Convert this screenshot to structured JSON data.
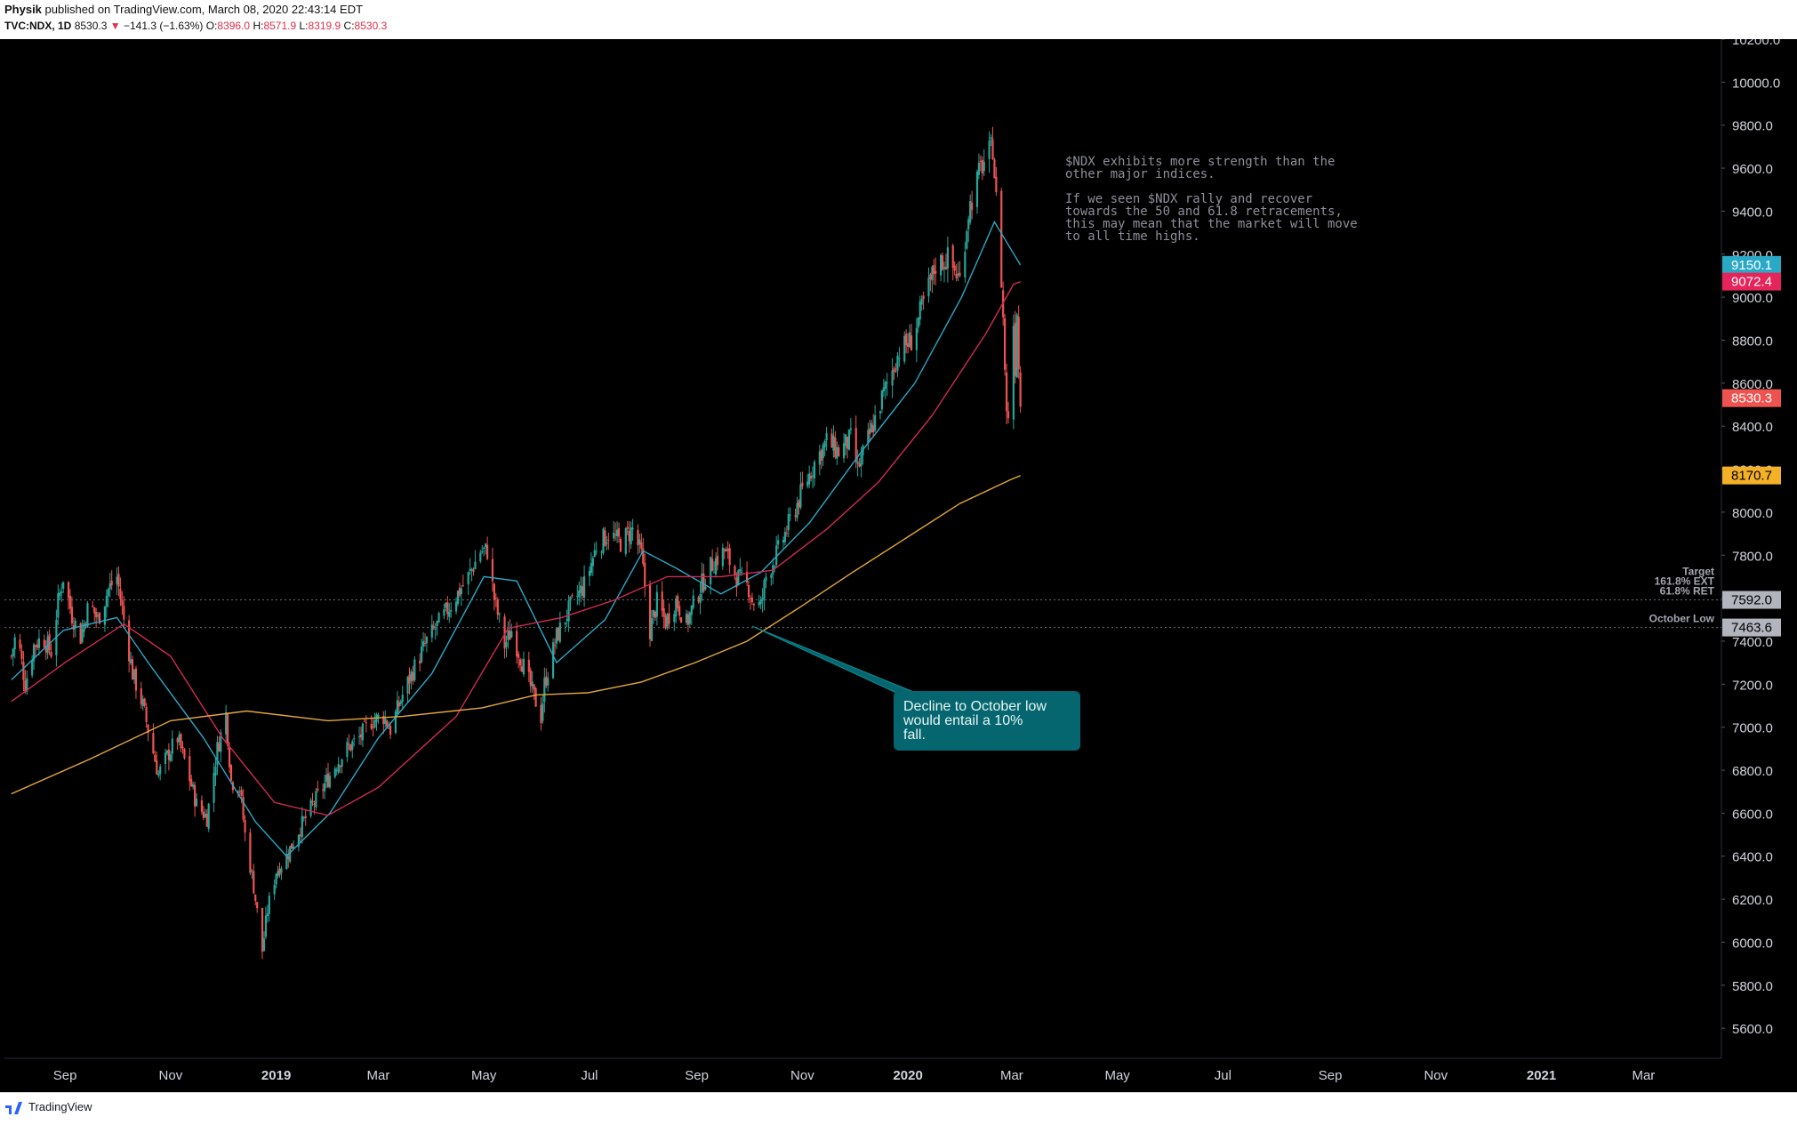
{
  "header": {
    "author": "Physik",
    "published": "published on TradingView.com, March 08, 2020 22:43:14 EDT",
    "symbol": "TVC:NDX, 1D",
    "last": "8530.3",
    "change": "−141.3 (−1.63%)",
    "o_label": "O:",
    "o": "8396.0",
    "h_label": "H:",
    "h": "8571.9",
    "l_label": "L:",
    "l": "8319.9",
    "c_label": "C:",
    "c": "8530.3"
  },
  "footer": {
    "brand": "TradingView"
  },
  "colors": {
    "background": "#000000",
    "up": "#26a69a",
    "down": "#ef5350",
    "ma_fast": "#2aa9c6",
    "ma_mid": "#d12a54",
    "ma_slow": "#e5a93b",
    "callout": "#05666f",
    "axis_text": "#d1d4dc"
  },
  "chart_data": {
    "type": "candlestick",
    "symbol": "TVC:NDX",
    "interval": "1D",
    "ylim": [
      5460,
      10200
    ],
    "x_range": [
      "2018-07-28",
      "2021-04-15"
    ],
    "y_ticks": [
      "5600.0",
      "5800.0",
      "6000.0",
      "6200.0",
      "6400.0",
      "6600.0",
      "6800.0",
      "7000.0",
      "7200.0",
      "7400.0",
      "7600.0",
      "7800.0",
      "8000.0",
      "8200.0",
      "8400.0",
      "8600.0",
      "8800.0",
      "9000.0",
      "9200.0",
      "9400.0",
      "9600.0",
      "9800.0",
      "10000.0",
      "10200.0"
    ],
    "x_ticks": [
      {
        "date": "2018-09-01",
        "label": "Sep",
        "bold": false
      },
      {
        "date": "2018-11-01",
        "label": "Nov",
        "bold": false
      },
      {
        "date": "2019-01-01",
        "label": "2019",
        "bold": true
      },
      {
        "date": "2019-03-01",
        "label": "Mar",
        "bold": false
      },
      {
        "date": "2019-05-01",
        "label": "May",
        "bold": false
      },
      {
        "date": "2019-07-01",
        "label": "Jul",
        "bold": false
      },
      {
        "date": "2019-09-01",
        "label": "Sep",
        "bold": false
      },
      {
        "date": "2019-11-01",
        "label": "Nov",
        "bold": false
      },
      {
        "date": "2020-01-01",
        "label": "2020",
        "bold": true
      },
      {
        "date": "2020-03-01",
        "label": "Mar",
        "bold": false
      },
      {
        "date": "2020-05-01",
        "label": "May",
        "bold": false
      },
      {
        "date": "2020-07-01",
        "label": "Jul",
        "bold": false
      },
      {
        "date": "2020-09-01",
        "label": "Sep",
        "bold": false
      },
      {
        "date": "2020-11-01",
        "label": "Nov",
        "bold": false
      },
      {
        "date": "2021-01-01",
        "label": "2021",
        "bold": true
      },
      {
        "date": "2021-03-01",
        "label": "Mar",
        "bold": false
      }
    ],
    "close_path": [
      [
        "2018-08-01",
        7330
      ],
      [
        "2018-08-04",
        7450
      ],
      [
        "2018-08-09",
        7200
      ],
      [
        "2018-08-14",
        7380
      ],
      [
        "2018-08-19",
        7420
      ],
      [
        "2018-08-24",
        7350
      ],
      [
        "2018-08-28",
        7580
      ],
      [
        "2018-08-31",
        7700
      ],
      [
        "2018-09-05",
        7520
      ],
      [
        "2018-09-10",
        7420
      ],
      [
        "2018-09-15",
        7580
      ],
      [
        "2018-09-20",
        7500
      ],
      [
        "2018-09-26",
        7640
      ],
      [
        "2018-10-01",
        7700
      ],
      [
        "2018-10-05",
        7500
      ],
      [
        "2018-10-10",
        7250
      ],
      [
        "2018-10-16",
        7100
      ],
      [
        "2018-10-20",
        6950
      ],
      [
        "2018-10-25",
        6780
      ],
      [
        "2018-10-31",
        6880
      ],
      [
        "2018-11-05",
        6950
      ],
      [
        "2018-11-10",
        6820
      ],
      [
        "2018-11-16",
        6640
      ],
      [
        "2018-11-22",
        6580
      ],
      [
        "2018-11-28",
        6900
      ],
      [
        "2018-12-03",
        7060
      ],
      [
        "2018-12-06",
        6750
      ],
      [
        "2018-12-11",
        6720
      ],
      [
        "2018-12-14",
        6500
      ],
      [
        "2018-12-19",
        6260
      ],
      [
        "2018-12-24",
        5960
      ],
      [
        "2018-12-27",
        6150
      ],
      [
        "2019-01-01",
        6330
      ],
      [
        "2019-01-07",
        6400
      ],
      [
        "2019-01-14",
        6520
      ],
      [
        "2019-01-21",
        6620
      ],
      [
        "2019-01-28",
        6720
      ],
      [
        "2019-02-04",
        6820
      ],
      [
        "2019-02-11",
        6900
      ],
      [
        "2019-02-18",
        6950
      ],
      [
        "2019-02-25",
        7030
      ],
      [
        "2019-03-04",
        7050
      ],
      [
        "2019-03-08",
        6990
      ],
      [
        "2019-03-15",
        7150
      ],
      [
        "2019-03-22",
        7280
      ],
      [
        "2019-03-29",
        7400
      ],
      [
        "2019-04-08",
        7520
      ],
      [
        "2019-04-15",
        7610
      ],
      [
        "2019-04-22",
        7700
      ],
      [
        "2019-04-29",
        7820
      ],
      [
        "2019-05-03",
        7820
      ],
      [
        "2019-05-07",
        7600
      ],
      [
        "2019-05-13",
        7380
      ],
      [
        "2019-05-17",
        7450
      ],
      [
        "2019-05-24",
        7280
      ],
      [
        "2019-06-03",
        7050
      ],
      [
        "2019-06-05",
        7200
      ],
      [
        "2019-06-12",
        7420
      ],
      [
        "2019-06-20",
        7560
      ],
      [
        "2019-06-28",
        7660
      ],
      [
        "2019-07-05",
        7840
      ],
      [
        "2019-07-12",
        7900
      ],
      [
        "2019-07-19",
        7860
      ],
      [
        "2019-07-26",
        7920
      ],
      [
        "2019-07-31",
        7800
      ],
      [
        "2019-08-05",
        7450
      ],
      [
        "2019-08-09",
        7580
      ],
      [
        "2019-08-14",
        7490
      ],
      [
        "2019-08-20",
        7590
      ],
      [
        "2019-08-26",
        7480
      ],
      [
        "2019-09-03",
        7650
      ],
      [
        "2019-09-10",
        7760
      ],
      [
        "2019-09-17",
        7820
      ],
      [
        "2019-09-24",
        7700
      ],
      [
        "2019-10-01",
        7650
      ],
      [
        "2019-10-03",
        7590
      ],
      [
        "2019-10-08",
        7560
      ],
      [
        "2019-10-11",
        7700
      ],
      [
        "2019-10-18",
        7820
      ],
      [
        "2019-10-25",
        7960
      ],
      [
        "2019-11-01",
        8100
      ],
      [
        "2019-11-08",
        8230
      ],
      [
        "2019-11-15",
        8330
      ],
      [
        "2019-11-22",
        8280
      ],
      [
        "2019-11-29",
        8340
      ],
      [
        "2019-12-03",
        8200
      ],
      [
        "2019-12-10",
        8360
      ],
      [
        "2019-12-17",
        8530
      ],
      [
        "2019-12-27",
        8750
      ],
      [
        "2020-01-03",
        8800
      ],
      [
        "2020-01-10",
        8970
      ],
      [
        "2020-01-17",
        9150
      ],
      [
        "2020-01-24",
        9180
      ],
      [
        "2020-01-31",
        9080
      ],
      [
        "2020-02-05",
        9400
      ],
      [
        "2020-02-12",
        9600
      ],
      [
        "2020-02-19",
        9700
      ],
      [
        "2020-02-21",
        9450
      ],
      [
        "2020-02-24",
        9080
      ],
      [
        "2020-02-25",
        8900
      ],
      [
        "2020-02-27",
        8450
      ],
      [
        "2020-02-28",
        8460
      ],
      [
        "2020-03-02",
        8880
      ],
      [
        "2020-03-03",
        8680
      ],
      [
        "2020-03-04",
        8950
      ],
      [
        "2020-03-05",
        8670
      ],
      [
        "2020-03-06",
        8530
      ]
    ],
    "moving_averages": [
      {
        "color": "#2aa9c6",
        "last_value": "9150.1",
        "points": [
          [
            "2018-08-01",
            7220
          ],
          [
            "2018-08-31",
            7450
          ],
          [
            "2018-10-01",
            7510
          ],
          [
            "2018-10-20",
            7290
          ],
          [
            "2018-11-20",
            6950
          ],
          [
            "2018-12-20",
            6560
          ],
          [
            "2019-01-07",
            6400
          ],
          [
            "2019-02-01",
            6600
          ],
          [
            "2019-03-01",
            6950
          ],
          [
            "2019-04-01",
            7250
          ],
          [
            "2019-05-01",
            7700
          ],
          [
            "2019-05-20",
            7680
          ],
          [
            "2019-06-12",
            7300
          ],
          [
            "2019-07-10",
            7500
          ],
          [
            "2019-08-01",
            7820
          ],
          [
            "2019-08-20",
            7740
          ],
          [
            "2019-09-15",
            7620
          ],
          [
            "2019-10-08",
            7720
          ],
          [
            "2019-11-05",
            7950
          ],
          [
            "2019-12-05",
            8280
          ],
          [
            "2020-01-05",
            8600
          ],
          [
            "2020-02-01",
            9000
          ],
          [
            "2020-02-20",
            9350
          ],
          [
            "2020-03-06",
            9150
          ]
        ]
      },
      {
        "color": "#d12a54",
        "last_value": "9072.4",
        "points": [
          [
            "2018-08-01",
            7120
          ],
          [
            "2018-09-01",
            7300
          ],
          [
            "2018-10-05",
            7480
          ],
          [
            "2018-11-01",
            7330
          ],
          [
            "2018-12-01",
            6950
          ],
          [
            "2018-12-31",
            6650
          ],
          [
            "2019-01-31",
            6590
          ],
          [
            "2019-03-01",
            6720
          ],
          [
            "2019-04-15",
            7050
          ],
          [
            "2019-05-15",
            7460
          ],
          [
            "2019-06-15",
            7510
          ],
          [
            "2019-07-15",
            7590
          ],
          [
            "2019-08-15",
            7700
          ],
          [
            "2019-09-15",
            7700
          ],
          [
            "2019-10-15",
            7730
          ],
          [
            "2019-11-15",
            7920
          ],
          [
            "2019-12-15",
            8140
          ],
          [
            "2020-01-15",
            8450
          ],
          [
            "2020-02-15",
            8830
          ],
          [
            "2020-03-02",
            9060
          ],
          [
            "2020-03-06",
            9072
          ]
        ]
      },
      {
        "color": "#e5a93b",
        "last_value": "8170.7",
        "points": [
          [
            "2018-08-01",
            6690
          ],
          [
            "2018-09-15",
            6850
          ],
          [
            "2018-11-01",
            7030
          ],
          [
            "2018-12-15",
            7075
          ],
          [
            "2019-01-31",
            7030
          ],
          [
            "2019-03-15",
            7050
          ],
          [
            "2019-04-30",
            7090
          ],
          [
            "2019-05-31",
            7150
          ],
          [
            "2019-06-30",
            7160
          ],
          [
            "2019-07-31",
            7210
          ],
          [
            "2019-08-31",
            7300
          ],
          [
            "2019-09-30",
            7400
          ],
          [
            "2019-10-31",
            7560
          ],
          [
            "2019-11-30",
            7720
          ],
          [
            "2019-12-31",
            7880
          ],
          [
            "2020-01-31",
            8040
          ],
          [
            "2020-02-29",
            8150
          ],
          [
            "2020-03-06",
            8170
          ]
        ]
      }
    ],
    "price_labels": [
      {
        "value": 9150.1,
        "text": "9150.1",
        "bg": "#2aa9c6"
      },
      {
        "value": 9072.4,
        "text": "9072.4",
        "bg": "#e4245a"
      },
      {
        "value": 8530.3,
        "text": "8530.3",
        "bg": "#ef5350"
      },
      {
        "value": 8170.7,
        "text": "8170.7",
        "bg": "#f4b127",
        "fg": "#000000"
      },
      {
        "value": 7592.0,
        "text": "7592.0",
        "bg": "#b2b5be",
        "fg": "#000000"
      },
      {
        "value": 7463.6,
        "text": "7463.6",
        "bg": "#b2b5be",
        "fg": "#000000"
      }
    ],
    "hlines": [
      {
        "value": 7592.0,
        "labels": [
          "Target",
          "161.8% EXT",
          "61.8% RET"
        ]
      },
      {
        "value": 7463.6,
        "labels": [
          "October Low"
        ]
      }
    ],
    "annotation_text": [
      "$NDX exhibits more strength than the",
      "other major indices.",
      "",
      "If we seen $NDX rally and recover",
      "towards the 50 and 61.8 retracements,",
      "this may mean that the market will move",
      "to all time highs."
    ],
    "callout": {
      "anchor_date": "2019-10-03",
      "anchor_value": 7470,
      "text": [
        "Decline to October low",
        "would entail a 10%",
        "fall."
      ]
    }
  }
}
